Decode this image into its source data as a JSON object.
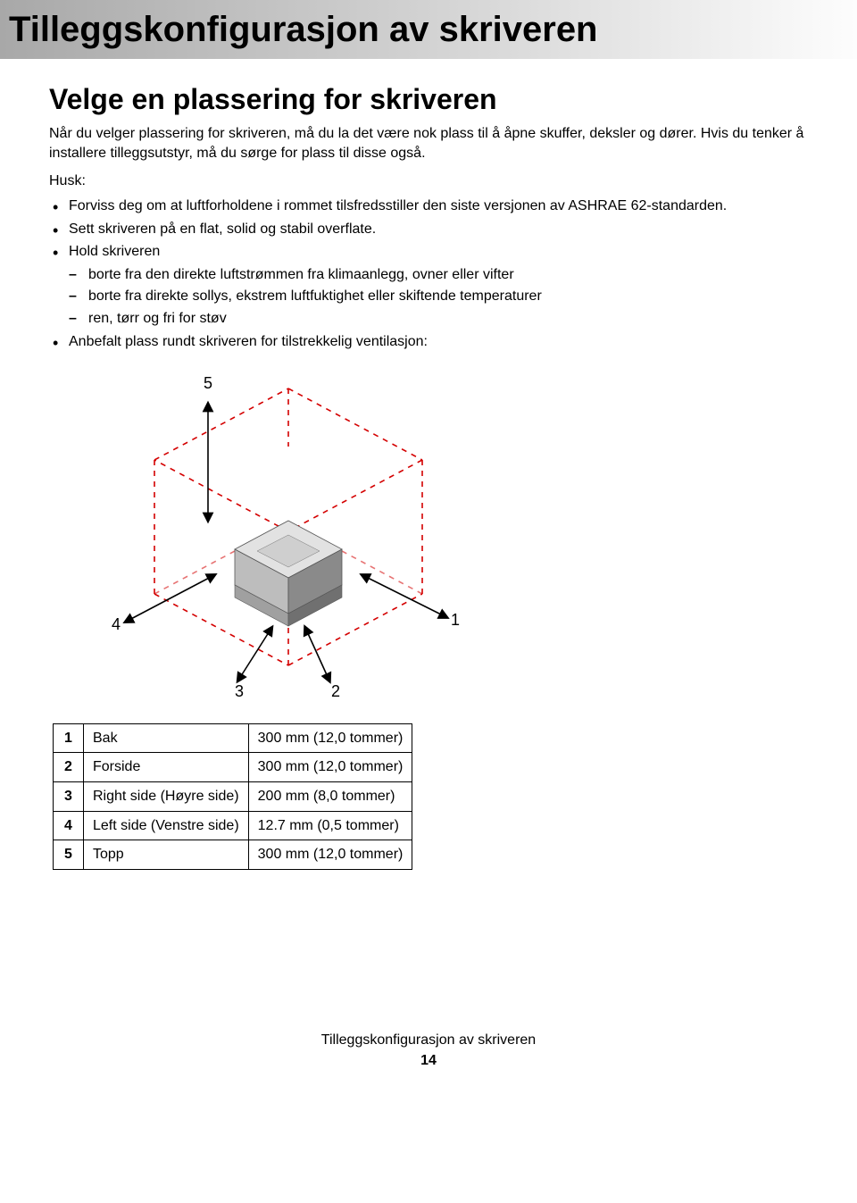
{
  "titlebar": {
    "text": "Tilleggskonfigurasjon av skriveren"
  },
  "section": {
    "heading": "Velge en plassering for skriveren",
    "intro": "Når du velger plassering for skriveren, må du la det være nok plass til å åpne skuffer, deksler og dører. Hvis du tenker å installere tilleggsutstyr, må du sørge for plass til disse også.",
    "husk_label": "Husk:",
    "bullets": [
      "Forviss deg om at luftforholdene i rommet tilsfredsstiller den siste versjonen av ASHRAE 62-standarden.",
      "Sett skriveren på en flat, solid og stabil overflate.",
      "Hold skriveren",
      "Anbefalt plass rundt skriveren for tilstrekkelig ventilasjon:"
    ],
    "sub_dashes": [
      "borte fra den direkte luftstrømmen fra klimaanlegg, ovner eller vifter",
      "borte fra direkte sollys, ekstrem luftfuktighet eller skiftende temperaturer",
      "ren, tørr og fri for støv"
    ]
  },
  "diagram": {
    "labels": {
      "n1": "1",
      "n2": "2",
      "n3": "3",
      "n4": "4",
      "n5": "5"
    },
    "colors": {
      "dash": "#d40000",
      "arrow": "#000000",
      "printer_body": "#bdbdbd",
      "printer_shadow": "#8a8a8a",
      "printer_light": "#e2e2e2",
      "tray": "#a0a0a0"
    }
  },
  "table": {
    "rows": [
      {
        "n": "1",
        "side": "Bak",
        "val": "300 mm (12,0 tommer)"
      },
      {
        "n": "2",
        "side": "Forside",
        "val": "300 mm (12,0 tommer)"
      },
      {
        "n": "3",
        "side": "Right side (Høyre side)",
        "val": "200 mm (8,0 tommer)"
      },
      {
        "n": "4",
        "side": "Left side (Venstre side)",
        "val": "12.7 mm (0,5 tommer)"
      },
      {
        "n": "5",
        "side": "Topp",
        "val": "300 mm (12,0 tommer)"
      }
    ]
  },
  "footer": {
    "title": "Tilleggskonfigurasjon av skriveren",
    "page": "14"
  }
}
